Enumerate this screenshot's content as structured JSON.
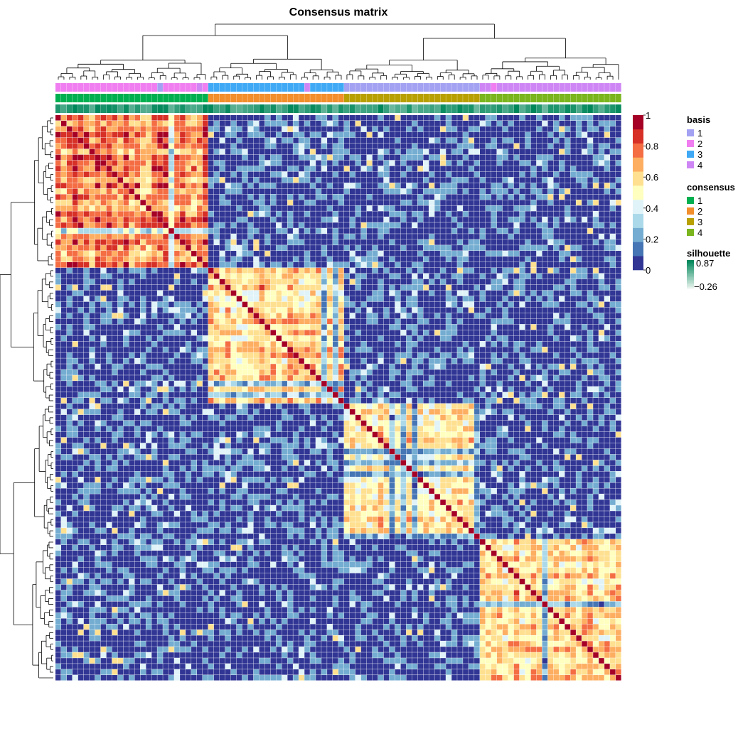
{
  "chart_data": {
    "type": "heatmap",
    "title": "Consensus matrix",
    "n_samples": 100,
    "clusters": [
      {
        "id": 1,
        "size": 27,
        "within": 0.92,
        "basis": "2"
      },
      {
        "id": 2,
        "size": 24,
        "within": 0.76,
        "basis": "3"
      },
      {
        "id": 3,
        "size": 24,
        "within": 0.72,
        "basis": "1"
      },
      {
        "id": 4,
        "size": 25,
        "within": 0.74,
        "basis": "4"
      }
    ],
    "between_cluster_mean": 0.1,
    "color_scale": {
      "min": 0,
      "max": 1,
      "ticks": [
        "0",
        "0.2",
        "0.4",
        "0.6",
        "0.8",
        "1"
      ],
      "colors": [
        "#313695",
        "#4575b4",
        "#74add1",
        "#abd9e9",
        "#e0f3f8",
        "#ffffbf",
        "#fee090",
        "#fdae61",
        "#f46d43",
        "#d73027",
        "#a50026"
      ]
    },
    "annotations": {
      "basis": {
        "title": "basis",
        "levels": [
          {
            "label": "1",
            "color": "#a3a1f2"
          },
          {
            "label": "2",
            "color": "#f07ef0"
          },
          {
            "label": "3",
            "color": "#3fa9f5"
          },
          {
            "label": "4",
            "color": "#cf86f5"
          }
        ]
      },
      "consensus": {
        "title": "consensus",
        "levels": [
          {
            "label": "1",
            "color": "#00b050"
          },
          {
            "label": "2",
            "color": "#f28e2b"
          },
          {
            "label": "3",
            "color": "#b8a000"
          },
          {
            "label": "4",
            "color": "#7ab51d"
          }
        ]
      },
      "silhouette": {
        "title": "silhouette",
        "max_label": "0.87",
        "min_label": "−0.26",
        "high_color": "#00875a",
        "low_color": "#e6f2ec"
      }
    },
    "legend_placement": "right"
  }
}
